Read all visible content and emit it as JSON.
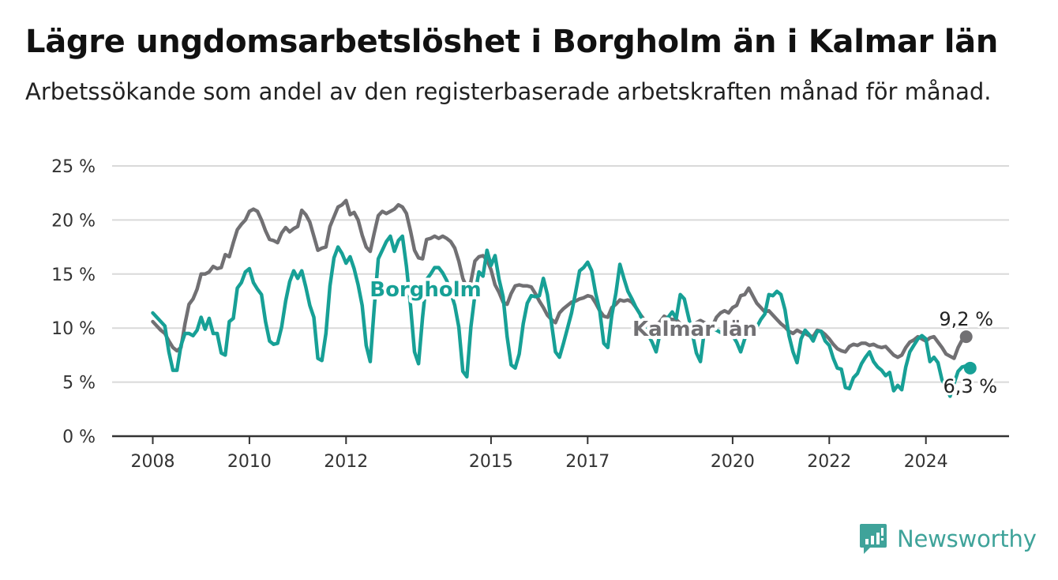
{
  "title": "Lägre ungdomsarbetslöshet i Borgholm än i Kalmar län",
  "subtitle": "Arbetssökande som andel av den registerbaserade arbetskraften månad för månad.",
  "brand": {
    "name": "Newsworthy",
    "icon": "newsworthy-logo-icon",
    "color": "#3fa39a"
  },
  "chart_data": {
    "type": "line",
    "title": "Lägre ungdomsarbetslöshet i Borgholm än i Kalmar län",
    "subtitle": "Arbetssökande som andel av den registerbaserade arbetskraften månad för månad.",
    "xlabel": "",
    "ylabel": "",
    "x_start": "2008-01",
    "x_end": "2024-10",
    "x_ticks": [
      "2008",
      "2010",
      "2012",
      "2015",
      "2017",
      "2020",
      "2022",
      "2024"
    ],
    "ylim": [
      0,
      25
    ],
    "y_ticks": [
      "0 %",
      "5 %",
      "10 %",
      "15 %",
      "20 %",
      "25 %"
    ],
    "grid": true,
    "legend": "inline labels",
    "series": [
      {
        "name": "Kalmar län",
        "color": "#717073",
        "end_label": "9,2 %",
        "values": [
          10.6,
          10.2,
          9.8,
          9.5,
          8.8,
          8.2,
          7.9,
          8.2,
          10.4,
          12.2,
          12.7,
          13.6,
          15.0,
          15.0,
          15.2,
          15.7,
          15.5,
          15.6,
          16.8,
          16.6,
          17.9,
          19.1,
          19.6,
          20.0,
          20.8,
          21.0,
          20.8,
          20.0,
          19.0,
          18.2,
          18.1,
          17.9,
          18.8,
          19.3,
          18.9,
          19.2,
          19.4,
          20.9,
          20.5,
          19.8,
          18.5,
          17.2,
          17.4,
          17.5,
          19.4,
          20.3,
          21.2,
          21.4,
          21.8,
          20.5,
          20.7,
          20.0,
          18.6,
          17.5,
          17.1,
          18.8,
          20.4,
          20.8,
          20.6,
          20.8,
          21.0,
          21.4,
          21.2,
          20.6,
          19.0,
          17.2,
          16.5,
          16.4,
          18.2,
          18.3,
          18.5,
          18.3,
          18.5,
          18.3,
          18.0,
          17.4,
          16.2,
          14.6,
          13.7,
          14.3,
          16.2,
          16.6,
          16.7,
          16.3,
          15.4,
          14.0,
          13.3,
          12.4,
          12.2,
          13.2,
          13.9,
          14.0,
          13.9,
          13.9,
          13.8,
          13.2,
          12.5,
          11.9,
          11.2,
          10.8,
          10.5,
          11.4,
          11.8,
          12.1,
          12.4,
          12.5,
          12.7,
          12.8,
          13.0,
          12.9,
          12.3,
          11.6,
          11.1,
          11.0,
          11.9,
          12.2,
          12.6,
          12.5,
          12.6,
          12.4,
          11.9,
          11.3,
          10.8,
          10.2,
          9.9,
          10.3,
          10.6,
          11.1,
          10.9,
          10.8,
          10.8,
          10.4,
          10.1,
          9.8,
          10.0,
          10.5,
          10.7,
          10.5,
          10.3,
          10.2,
          11.0,
          11.4,
          11.6,
          11.4,
          11.9,
          12.1,
          13.0,
          13.1,
          13.7,
          13.0,
          12.3,
          11.9,
          11.5,
          11.6,
          11.2,
          10.8,
          10.4,
          10.1,
          9.7,
          9.5,
          9.8,
          9.6,
          9.5,
          9.3,
          9.2,
          9.8,
          9.7,
          9.4,
          9.0,
          8.5,
          8.1,
          7.9,
          7.8,
          8.3,
          8.5,
          8.4,
          8.6,
          8.6,
          8.4,
          8.5,
          8.3,
          8.2,
          8.3,
          7.9,
          7.5,
          7.3,
          7.5,
          8.2,
          8.7,
          8.9,
          9.2,
          9.0,
          8.8,
          9.1,
          9.2,
          8.7,
          8.2,
          7.6,
          7.4,
          7.2,
          8.2,
          8.9,
          9.2
        ]
      },
      {
        "name": "Borgholm",
        "color": "#17a096",
        "end_label": "6,3 %",
        "values": [
          11.4,
          11.0,
          10.6,
          10.2,
          7.8,
          6.1,
          6.1,
          8.4,
          9.5,
          9.5,
          9.3,
          9.8,
          11.0,
          9.9,
          10.9,
          9.5,
          9.5,
          7.7,
          7.5,
          10.6,
          10.9,
          13.7,
          14.2,
          15.2,
          15.5,
          14.2,
          13.6,
          13.1,
          10.6,
          8.8,
          8.5,
          8.6,
          10.1,
          12.5,
          14.3,
          15.3,
          14.6,
          15.3,
          13.8,
          12.1,
          11.0,
          7.2,
          7.0,
          9.5,
          13.9,
          16.5,
          17.5,
          16.9,
          16.0,
          16.6,
          15.5,
          14.0,
          12.1,
          8.4,
          6.9,
          11.9,
          16.4,
          17.2,
          18.0,
          18.5,
          17.1,
          18.1,
          18.5,
          15.7,
          12.1,
          7.8,
          6.7,
          11.0,
          14.5,
          15.0,
          15.6,
          15.6,
          15.1,
          14.4,
          13.3,
          12.1,
          10.1,
          6.0,
          5.5,
          10.1,
          13.1,
          15.2,
          14.8,
          17.2,
          15.8,
          16.7,
          14.5,
          12.9,
          9.2,
          6.6,
          6.3,
          7.6,
          10.4,
          12.3,
          13.0,
          12.9,
          13.0,
          14.6,
          13.1,
          10.5,
          7.8,
          7.3,
          8.6,
          10.0,
          11.4,
          13.3,
          15.3,
          15.6,
          16.1,
          15.3,
          13.2,
          11.6,
          8.6,
          8.2,
          11.2,
          13.2,
          15.9,
          14.6,
          13.4,
          12.7,
          11.9,
          11.3,
          10.1,
          9.4,
          8.7,
          7.8,
          9.6,
          10.5,
          11.0,
          11.5,
          10.9,
          13.1,
          12.7,
          11.1,
          9.5,
          7.7,
          6.9,
          9.8,
          10.4,
          10.0,
          9.8,
          9.6,
          9.5,
          9.9,
          9.3,
          8.7,
          7.8,
          9.0,
          9.6,
          9.8,
          10.1,
          10.8,
          11.3,
          13.1,
          13.0,
          13.4,
          13.1,
          11.7,
          9.3,
          7.8,
          6.8,
          9.0,
          9.8,
          9.4,
          8.8,
          9.7,
          9.7,
          8.8,
          8.4,
          7.2,
          6.3,
          6.2,
          4.5,
          4.4,
          5.4,
          5.8,
          6.7,
          7.3,
          7.8,
          6.9,
          6.4,
          6.1,
          5.6,
          5.9,
          4.2,
          4.7,
          4.3,
          6.4,
          7.8,
          8.4,
          9.0,
          9.3,
          9.0,
          6.9,
          7.3,
          6.8,
          5.2,
          4.6,
          3.7,
          4.9,
          6.0,
          6.4,
          6.5,
          6.3
        ]
      }
    ]
  }
}
